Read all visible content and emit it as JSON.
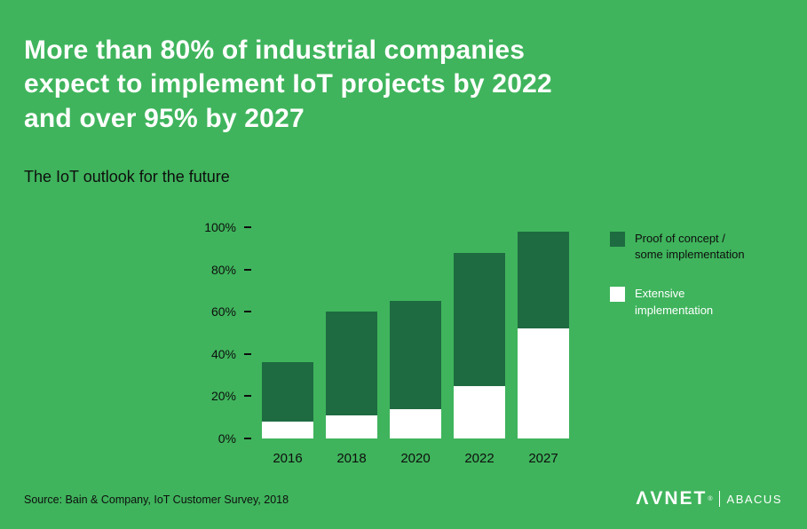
{
  "page": {
    "title": "More than 80% of industrial companies\nexpect to implement IoT projects by 2022\nand over 95% by 2027",
    "subtitle": "The IoT outlook for the future",
    "source": "Source: Bain & Company, IoT Customer Survey, 2018"
  },
  "logo": {
    "brand": "ΛVNET",
    "reg": "®",
    "sub": "ABACUS"
  },
  "colors": {
    "background": "#3fb45c",
    "bar_dark_green": "#1e6b41",
    "bar_white": "#ffffff",
    "text_dark": "#0e0e0e",
    "text_white": "#ffffff"
  },
  "chart_data": {
    "type": "bar",
    "stacked": true,
    "title": "The IoT outlook for the future",
    "categories": [
      "2016",
      "2018",
      "2020",
      "2022",
      "2027"
    ],
    "series": [
      {
        "name": "Extensive implementation",
        "color": "#ffffff",
        "values": [
          8,
          11,
          14,
          25,
          52
        ]
      },
      {
        "name": "Proof of concept / some implementation",
        "color": "#1e6b41",
        "values": [
          28,
          49,
          51,
          63,
          46
        ]
      }
    ],
    "totals": [
      36,
      60,
      65,
      88,
      98
    ],
    "xlabel": "",
    "ylabel": "",
    "ylim": [
      0,
      100
    ],
    "yticks": [
      100,
      80,
      60,
      40,
      20,
      0
    ],
    "ytick_labels": [
      "100%",
      "80%",
      "60%",
      "40%",
      "20%",
      "0%"
    ],
    "grid": false,
    "legend_position": "right",
    "legend": [
      {
        "label": "Proof of concept /\nsome implementation",
        "color": "#1e6b41",
        "text_color": "#0e0e0e"
      },
      {
        "label": "Extensive\nimplementation",
        "color": "#ffffff",
        "text_color": "#ffffff"
      }
    ]
  }
}
